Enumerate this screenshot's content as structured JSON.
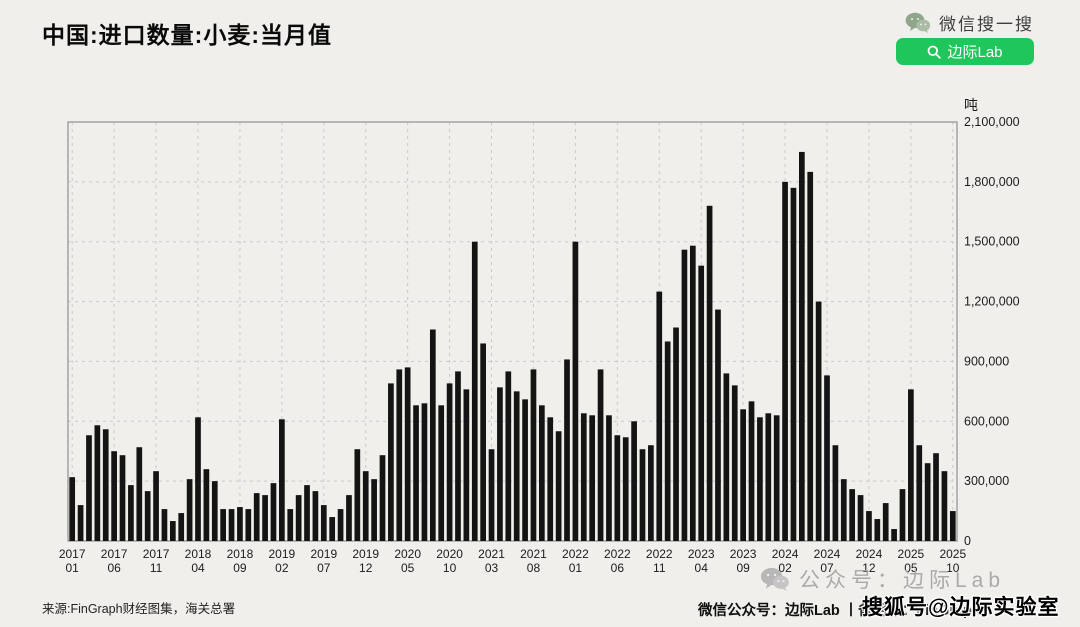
{
  "page": {
    "background": "#f0efec",
    "title": "中国:进口数量:小麦:当月值",
    "source_note": "来源:FinGraph财经图集，海关总署",
    "footer_right": "微信公众号：边际Lab 丨备用号：FinGraph",
    "watermark_text": "公众号：边际Lab",
    "sohu_watermark": "搜狐号@边际实验室"
  },
  "wechat_search": {
    "brand_label": "微信搜一搜",
    "button_label": "边际Lab",
    "button_color": "#1fc65c"
  },
  "chart_data": {
    "type": "bar",
    "title": "中国:进口数量:小麦:当月值",
    "unit": "吨",
    "bar_color": "#141414",
    "grid": true,
    "legend": false,
    "ylim": [
      0,
      2100000
    ],
    "ytick_step": 300000,
    "y_tick_labels": [
      "0",
      "300,000",
      "600,000",
      "900,000",
      "1,200,000",
      "1,500,000",
      "1,800,000",
      "2,100,000"
    ],
    "x_start": "2017-01",
    "x_end": "2025-10",
    "xtick_every": 5,
    "x_tick_labels": [
      [
        "2017",
        "01"
      ],
      [
        "2017",
        "06"
      ],
      [
        "2017",
        "11"
      ],
      [
        "2018",
        "04"
      ],
      [
        "2018",
        "09"
      ],
      [
        "2019",
        "02"
      ],
      [
        "2019",
        "07"
      ],
      [
        "2019",
        "12"
      ],
      [
        "2020",
        "05"
      ],
      [
        "2020",
        "10"
      ],
      [
        "2021",
        "03"
      ],
      [
        "2021",
        "08"
      ],
      [
        "2022",
        "01"
      ],
      [
        "2022",
        "06"
      ],
      [
        "2022",
        "11"
      ],
      [
        "2023",
        "04"
      ],
      [
        "2023",
        "09"
      ],
      [
        "2024",
        "02"
      ],
      [
        "2024",
        "07"
      ],
      [
        "2024",
        "12"
      ],
      [
        "2025",
        "05"
      ],
      [
        "2025",
        "10"
      ]
    ],
    "values": [
      320000,
      180000,
      530000,
      580000,
      560000,
      450000,
      430000,
      280000,
      470000,
      250000,
      350000,
      160000,
      100000,
      140000,
      310000,
      620000,
      360000,
      300000,
      160000,
      160000,
      170000,
      160000,
      240000,
      230000,
      290000,
      610000,
      160000,
      230000,
      280000,
      250000,
      180000,
      120000,
      160000,
      230000,
      460000,
      350000,
      310000,
      430000,
      790000,
      860000,
      870000,
      680000,
      690000,
      1060000,
      680000,
      790000,
      850000,
      760000,
      1500000,
      990000,
      460000,
      770000,
      850000,
      750000,
      710000,
      860000,
      680000,
      620000,
      550000,
      910000,
      1500000,
      640000,
      630000,
      860000,
      630000,
      530000,
      520000,
      600000,
      460000,
      480000,
      1250000,
      1000000,
      1070000,
      1460000,
      1480000,
      1380000,
      1680000,
      1160000,
      840000,
      780000,
      660000,
      700000,
      620000,
      640000,
      630000,
      1800000,
      1770000,
      1950000,
      1850000,
      1200000,
      830000,
      480000,
      310000,
      260000,
      230000,
      150000,
      110000,
      190000,
      60000,
      260000,
      760000,
      480000,
      390000,
      440000,
      350000,
      150000
    ]
  }
}
